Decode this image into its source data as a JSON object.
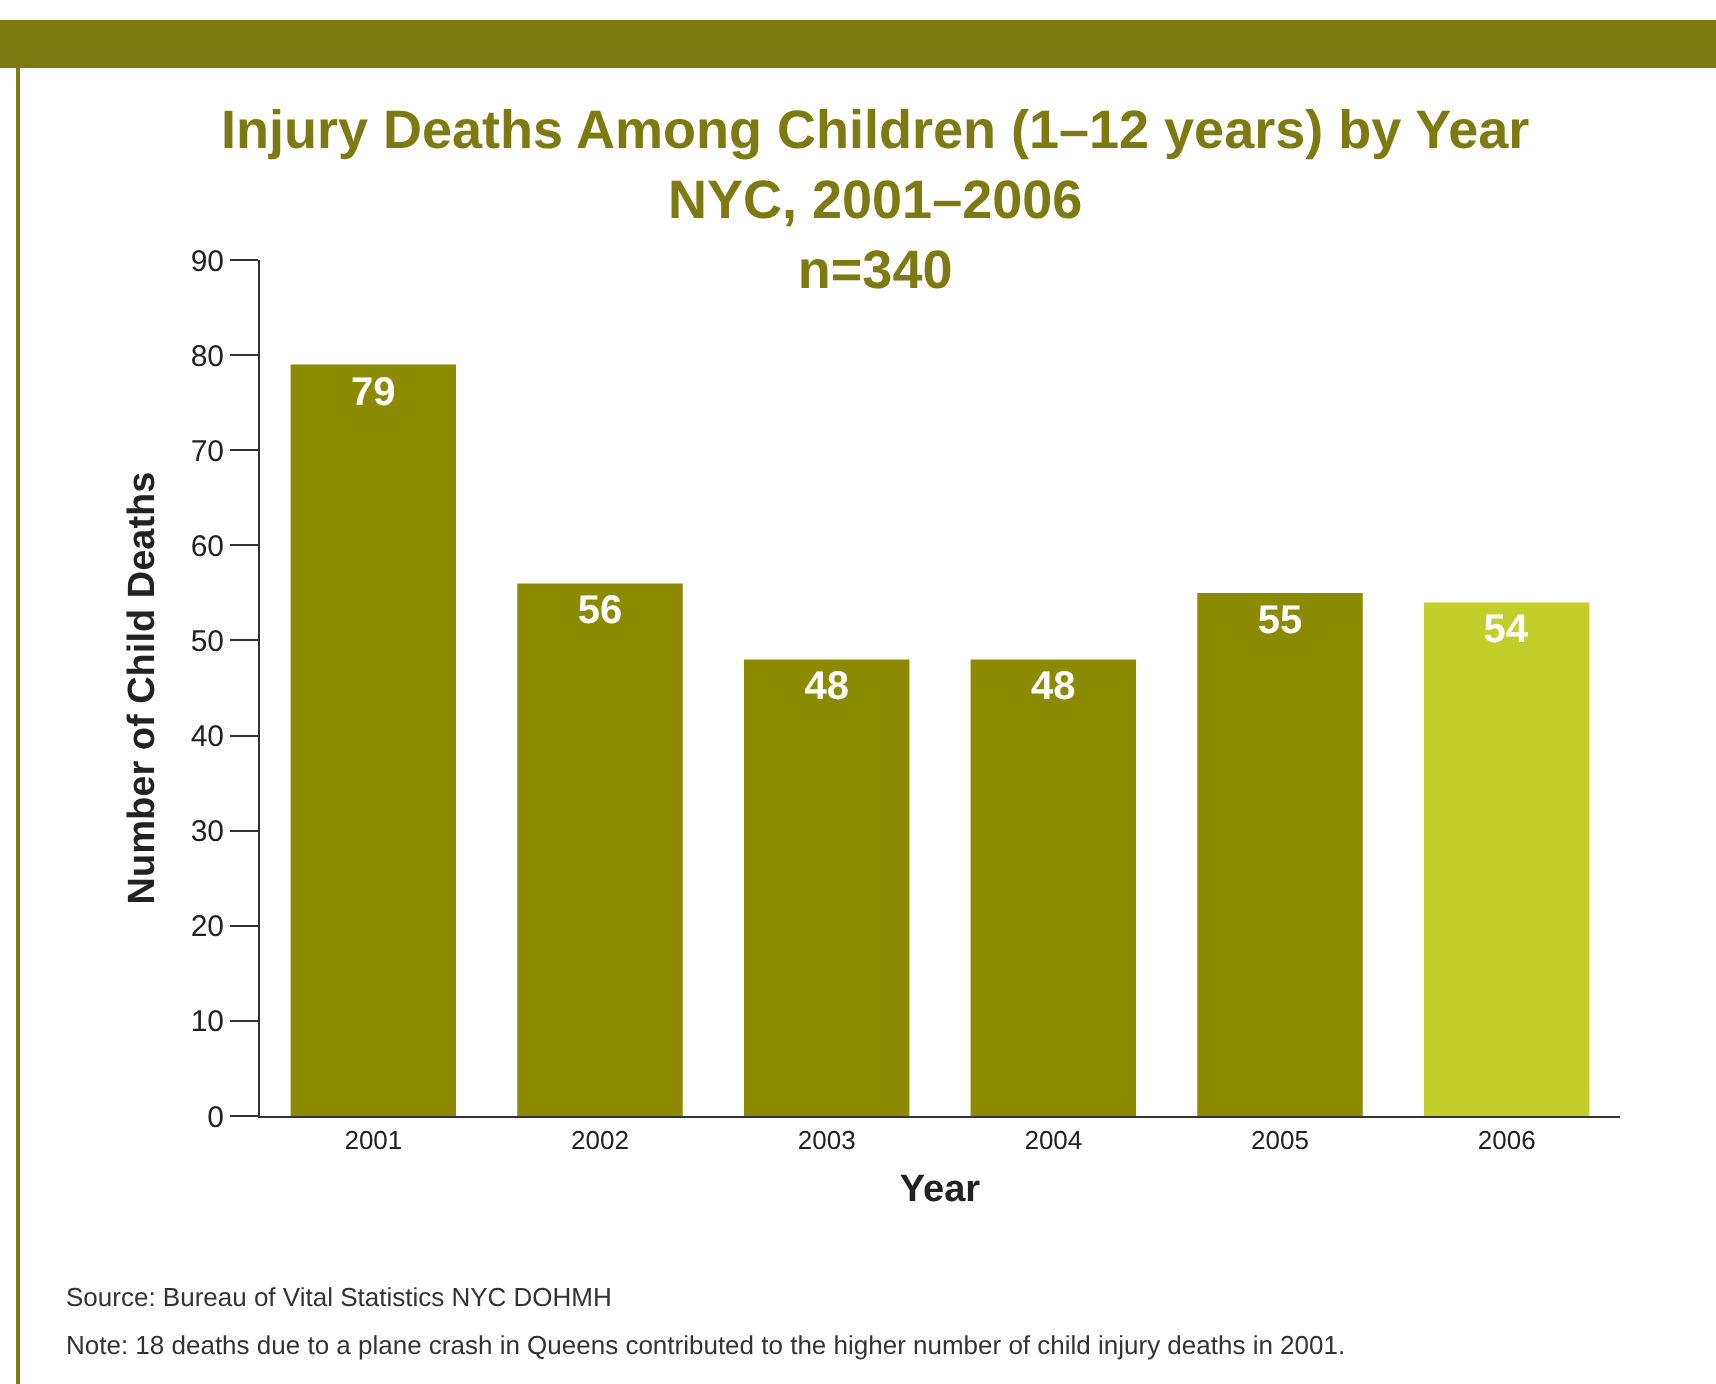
{
  "chart_data": {
    "type": "bar",
    "title": "Injury Deaths Among Children (1–12 years) by Year\nNYC, 2001–2006\nn=340",
    "xlabel": "Year",
    "ylabel": "Number of Child Deaths",
    "categories": [
      "2001",
      "2002",
      "2003",
      "2004",
      "2005",
      "2006"
    ],
    "values": [
      79,
      56,
      48,
      48,
      55,
      54
    ],
    "colors": [
      "#8b8a00",
      "#8b8a00",
      "#8b8a00",
      "#8b8a00",
      "#8b8a00",
      "#c2cf2a"
    ],
    "ylim": [
      0,
      90
    ],
    "yticks": [
      0,
      10,
      20,
      30,
      40,
      50,
      60,
      70,
      80,
      90
    ],
    "data_labels": true,
    "annotations": [
      "Source: Bureau of Vital Statistics NYC DOHMH",
      "Note: 18 deaths due to a plane crash in Queens contributed to the higher number of child injury deaths in 2001."
    ]
  }
}
